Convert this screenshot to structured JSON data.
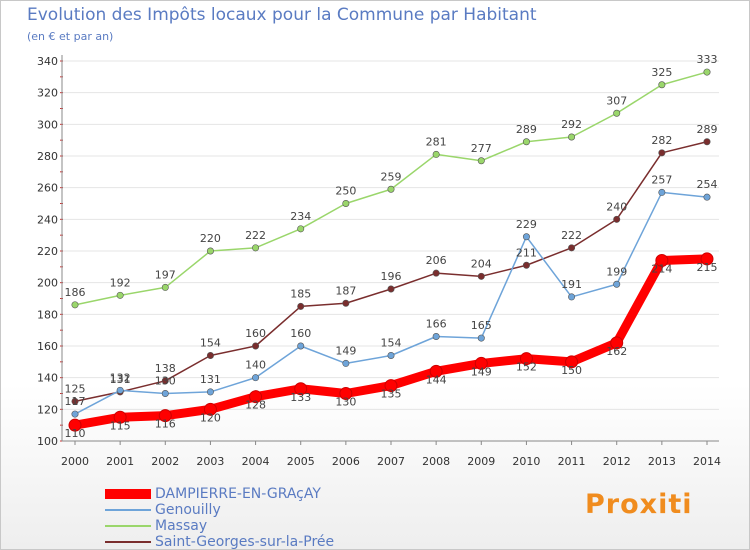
{
  "header": {
    "title": "Evolution des Impôts locaux pour la Commune par Habitant",
    "subtitle": "(en € et par an)"
  },
  "logo": {
    "text": "Proxiti"
  },
  "chart_data": {
    "type": "line",
    "title": "Evolution des Impôts locaux pour la Commune par Habitant",
    "subtitle": "(en € et par an)",
    "xlabel": "",
    "ylabel": "",
    "x": [
      "2000",
      "2001",
      "2002",
      "2003",
      "2004",
      "2005",
      "2006",
      "2007",
      "2008",
      "2009",
      "2010",
      "2011",
      "2012",
      "2013",
      "2014"
    ],
    "ylim": [
      100,
      340
    ],
    "yticks": [
      100,
      120,
      140,
      160,
      180,
      200,
      220,
      240,
      260,
      280,
      300,
      320,
      340
    ],
    "grid": "horizontal",
    "legend_position": "bottom-left",
    "series": [
      {
        "name": "DAMPIERRE-EN-GRAçAY",
        "color": "#ff0000",
        "values": [
          110,
          115,
          116,
          120,
          128,
          133,
          130,
          135,
          144,
          149,
          152,
          150,
          162,
          214,
          215
        ]
      },
      {
        "name": "Genouilly",
        "color": "#6ea4d9",
        "values": [
          117,
          132,
          130,
          131,
          140,
          160,
          149,
          154,
          166,
          165,
          229,
          191,
          199,
          257,
          254
        ]
      },
      {
        "name": "Massay",
        "color": "#9ad66b",
        "values": [
          186,
          192,
          197,
          220,
          222,
          234,
          250,
          259,
          281,
          277,
          289,
          292,
          307,
          325,
          333
        ]
      },
      {
        "name": "Saint-Georges-sur-la-Prée",
        "color": "#7a2e2e",
        "values": [
          125,
          131,
          138,
          154,
          160,
          185,
          187,
          196,
          206,
          204,
          211,
          222,
          240,
          282,
          289
        ]
      }
    ]
  }
}
